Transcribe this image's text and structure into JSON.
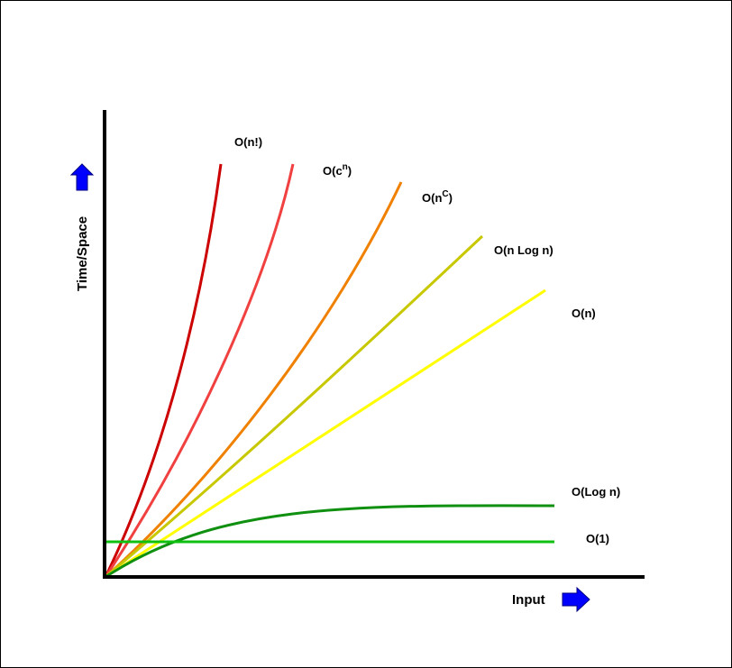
{
  "axes": {
    "x_label": "Input",
    "y_label": "Time/Space",
    "axis_color": "#000000",
    "arrow_color": "#0000ff",
    "arrow_outline": "#000080"
  },
  "curves": [
    {
      "id": "factorial",
      "label_main": "O(n!)",
      "label_sup": "",
      "label_tail": "",
      "color": "#cc0000"
    },
    {
      "id": "exponential",
      "label_main": "O(c",
      "label_sup": "n",
      "label_tail": ")",
      "color": "#f04040"
    },
    {
      "id": "polynomial",
      "label_main": "O(n",
      "label_sup": "C",
      "label_tail": ")",
      "color": "#f08000"
    },
    {
      "id": "linearithmic",
      "label_main": "O(n Log n)",
      "label_sup": "",
      "label_tail": "",
      "color": "#c8c800"
    },
    {
      "id": "linear",
      "label_main": "O(n)",
      "label_sup": "",
      "label_tail": "",
      "color": "#ffff00"
    },
    {
      "id": "logarithmic",
      "label_main": "O(Log n)",
      "label_sup": "",
      "label_tail": "",
      "color": "#109010"
    },
    {
      "id": "constant",
      "label_main": "O(1)",
      "label_sup": "",
      "label_tail": "",
      "color": "#10c010"
    }
  ]
}
